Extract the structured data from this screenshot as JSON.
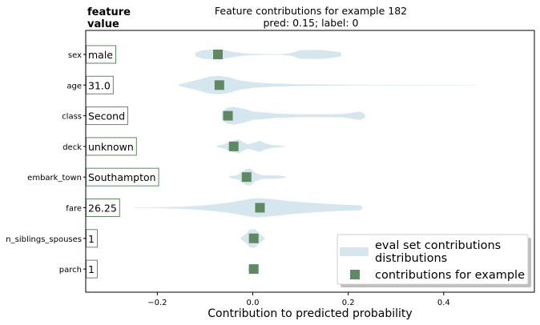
{
  "chart_data": {
    "type": "scatter",
    "title_line1": "Feature contributions for example 182",
    "title_line2": "pred: 0.15; label: 0",
    "corner_label_line1": "feature",
    "corner_label_line2": "value",
    "xlabel": "Contribution to predicted probability",
    "xlim": [
      -0.35,
      0.59
    ],
    "xticks": [
      -0.2,
      0.0,
      0.2,
      0.4
    ],
    "xtick_labels": [
      "−0.2",
      "0.0",
      "0.2",
      "0.4"
    ],
    "features": [
      {
        "name": "sex",
        "value": "male",
        "contribution": -0.073,
        "violin": [
          [
            -0.12,
            0.05
          ],
          [
            -0.105,
            0.12
          ],
          [
            -0.085,
            0.14
          ],
          [
            -0.06,
            0.12
          ],
          [
            -0.04,
            0.07
          ],
          [
            -0.02,
            0.035
          ],
          [
            0.0,
            0.02
          ],
          [
            0.03,
            0.012
          ],
          [
            0.06,
            0.012
          ],
          [
            0.08,
            0.04
          ],
          [
            0.1,
            0.12
          ],
          [
            0.14,
            0.13
          ],
          [
            0.17,
            0.09
          ],
          [
            0.185,
            0.05
          ]
        ]
      },
      {
        "name": "age",
        "value": "31.0",
        "contribution": -0.07,
        "violin": [
          [
            -0.155,
            0.02
          ],
          [
            -0.13,
            0.1
          ],
          [
            -0.11,
            0.17
          ],
          [
            -0.09,
            0.24
          ],
          [
            -0.07,
            0.26
          ],
          [
            -0.05,
            0.22
          ],
          [
            -0.03,
            0.14
          ],
          [
            0.0,
            0.08
          ],
          [
            0.04,
            0.045
          ],
          [
            0.1,
            0.025
          ],
          [
            0.2,
            0.012
          ],
          [
            0.38,
            0.006
          ],
          [
            0.47,
            0.004
          ]
        ]
      },
      {
        "name": "class",
        "value": "Second",
        "contribution": -0.052,
        "violin": [
          [
            -0.065,
            0.1
          ],
          [
            -0.055,
            0.22
          ],
          [
            -0.04,
            0.25
          ],
          [
            -0.02,
            0.2
          ],
          [
            0.0,
            0.12
          ],
          [
            0.05,
            0.06
          ],
          [
            0.1,
            0.04
          ],
          [
            0.15,
            0.04
          ],
          [
            0.19,
            0.05
          ],
          [
            0.225,
            0.12
          ],
          [
            0.235,
            0.05
          ]
        ]
      },
      {
        "name": "deck",
        "value": "unknown",
        "contribution": -0.04,
        "violin": [
          [
            -0.075,
            0.02
          ],
          [
            -0.06,
            0.06
          ],
          [
            -0.045,
            0.15
          ],
          [
            -0.03,
            0.2
          ],
          [
            -0.02,
            0.12
          ],
          [
            -0.01,
            0.06
          ],
          [
            0.005,
            0.12
          ],
          [
            0.015,
            0.16
          ],
          [
            0.025,
            0.09
          ],
          [
            0.04,
            0.04
          ],
          [
            0.06,
            0.02
          ],
          [
            0.07,
            0.005
          ]
        ]
      },
      {
        "name": "embark_town",
        "value": "Southampton",
        "contribution": -0.013,
        "violin": [
          [
            -0.05,
            0.015
          ],
          [
            -0.03,
            0.07
          ],
          [
            -0.015,
            0.22
          ],
          [
            -0.005,
            0.24
          ],
          [
            0.005,
            0.12
          ],
          [
            0.02,
            0.05
          ],
          [
            0.04,
            0.05
          ],
          [
            0.055,
            0.04
          ],
          [
            0.07,
            0.01
          ]
        ]
      },
      {
        "name": "fare",
        "value": "26.25",
        "contribution": 0.015,
        "violin": [
          [
            -0.25,
            0.004
          ],
          [
            -0.2,
            0.012
          ],
          [
            -0.15,
            0.03
          ],
          [
            -0.1,
            0.07
          ],
          [
            -0.05,
            0.14
          ],
          [
            -0.01,
            0.24
          ],
          [
            0.01,
            0.27
          ],
          [
            0.04,
            0.24
          ],
          [
            0.08,
            0.18
          ],
          [
            0.13,
            0.13
          ],
          [
            0.18,
            0.09
          ],
          [
            0.225,
            0.07
          ],
          [
            0.23,
            0.02
          ]
        ]
      },
      {
        "name": "n_siblings_spouses",
        "value": "1",
        "contribution": 0.002,
        "violin": [
          [
            -0.025,
            0.02
          ],
          [
            -0.015,
            0.12
          ],
          [
            -0.005,
            0.26
          ],
          [
            0.005,
            0.26
          ],
          [
            0.015,
            0.12
          ],
          [
            0.025,
            0.02
          ]
        ]
      },
      {
        "name": "parch",
        "value": "1",
        "contribution": 0.002,
        "violin": [
          [
            -0.01,
            0.05
          ],
          [
            -0.005,
            0.13
          ],
          [
            0.0,
            0.14
          ],
          [
            0.005,
            0.13
          ],
          [
            0.01,
            0.05
          ]
        ]
      }
    ],
    "legend": {
      "entries": [
        {
          "label_line1": "eval set contributions",
          "label_line2": "distributions",
          "marker": "violin-patch"
        },
        {
          "label_line1": "contributions for example",
          "marker": "square"
        }
      ],
      "placement": "lower-right"
    },
    "colors": {
      "violin": "#d6e6ef",
      "marker": "#5f8a61",
      "value_box_border": "#5f8a61",
      "axis": "#000000"
    }
  }
}
